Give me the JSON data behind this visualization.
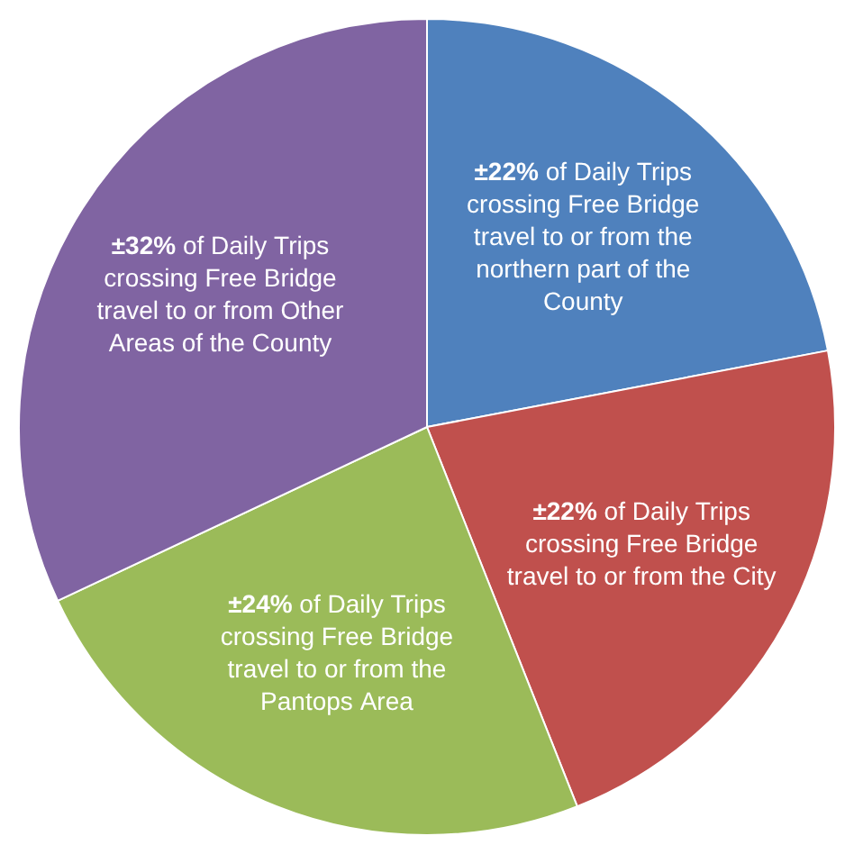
{
  "chart_data": {
    "type": "pie",
    "categories": [
      "of Daily Trips crossing Free Bridge travel to or from the northern part of the County",
      "of Daily Trips crossing Free Bridge travel to or from the City",
      "of Daily Trips crossing Free Bridge travel to or from the Pantops Area",
      "of Daily Trips crossing Free Bridge travel to or from Other Areas of the County"
    ],
    "values": [
      22,
      22,
      24,
      32
    ],
    "value_labels": [
      "±22%",
      "±22%",
      "±24%",
      "±32%"
    ],
    "colors": [
      "#4f81bd",
      "#c0504d",
      "#9bbb59",
      "#8064a2"
    ],
    "legend": false
  }
}
